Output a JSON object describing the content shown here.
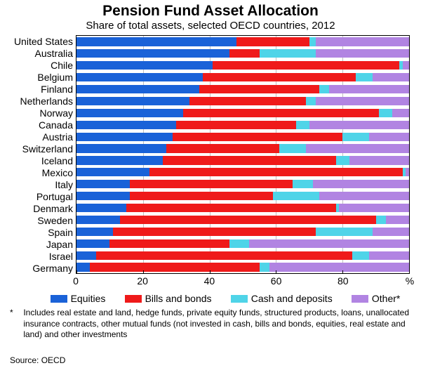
{
  "title": "Pension Fund Asset Allocation",
  "subtitle": "Share of total assets, selected OECD countries, 2012",
  "chart": {
    "type": "stacked-horizontal-bar",
    "xlim": [
      0,
      100
    ],
    "xticks": [
      0,
      20,
      40,
      60,
      80
    ],
    "xend_label": "%",
    "xtick_fontsize": 14,
    "ylabel_fontsize": 14,
    "title_fontsize": 21,
    "subtitle_fontsize": 15,
    "legend_fontsize": 14,
    "footnote_fontsize": 12,
    "source_fontsize": 12,
    "background_color": "#ffffff",
    "grid_color": "#c0c0c0",
    "border_color": "#000000",
    "series": [
      {
        "key": "equities",
        "label": "Equities",
        "color": "#1a62d8"
      },
      {
        "key": "bills",
        "label": "Bills and bonds",
        "color": "#ef1a1a"
      },
      {
        "key": "cash",
        "label": "Cash and deposits",
        "color": "#4fd4e8"
      },
      {
        "key": "other",
        "label": "Other*",
        "color": "#b184e2"
      }
    ],
    "countries": [
      {
        "name": "United States",
        "values": [
          48,
          22,
          2,
          28
        ]
      },
      {
        "name": "Australia",
        "values": [
          46,
          9,
          17,
          28
        ]
      },
      {
        "name": "Chile",
        "values": [
          41,
          56,
          1,
          2
        ]
      },
      {
        "name": "Belgium",
        "values": [
          38,
          46,
          5,
          11
        ]
      },
      {
        "name": "Finland",
        "values": [
          37,
          36,
          3,
          24
        ]
      },
      {
        "name": "Netherlands",
        "values": [
          34,
          35,
          3,
          28
        ]
      },
      {
        "name": "Norway",
        "values": [
          32,
          59,
          4,
          5
        ]
      },
      {
        "name": "Canada",
        "values": [
          30,
          36,
          4,
          30
        ]
      },
      {
        "name": "Austria",
        "values": [
          29,
          51,
          8,
          12
        ]
      },
      {
        "name": "Switzerland",
        "values": [
          27,
          34,
          8,
          31
        ]
      },
      {
        "name": "Iceland",
        "values": [
          26,
          52,
          4,
          18
        ]
      },
      {
        "name": "Mexico",
        "values": [
          22,
          76,
          1,
          1
        ]
      },
      {
        "name": "Italy",
        "values": [
          16,
          49,
          6,
          29
        ]
      },
      {
        "name": "Portugal",
        "values": [
          16,
          43,
          14,
          27
        ]
      },
      {
        "name": "Denmark",
        "values": [
          15,
          63,
          1,
          21
        ]
      },
      {
        "name": "Sweden",
        "values": [
          13,
          77,
          3,
          7
        ]
      },
      {
        "name": "Spain",
        "values": [
          11,
          61,
          17,
          11
        ]
      },
      {
        "name": "Japan",
        "values": [
          10,
          36,
          6,
          48
        ]
      },
      {
        "name": "Israel",
        "values": [
          6,
          77,
          5,
          12
        ]
      },
      {
        "name": "Germany",
        "values": [
          4,
          51,
          3,
          42
        ]
      }
    ]
  },
  "footnote": {
    "marker": "*",
    "text": "Includes real estate and land, hedge funds, private equity funds, structured products, loans, unallocated insurance contracts, other mutual funds (not invested in cash, bills and bonds, equities, real estate and land) and other investments"
  },
  "source_label": "Source: OECD"
}
